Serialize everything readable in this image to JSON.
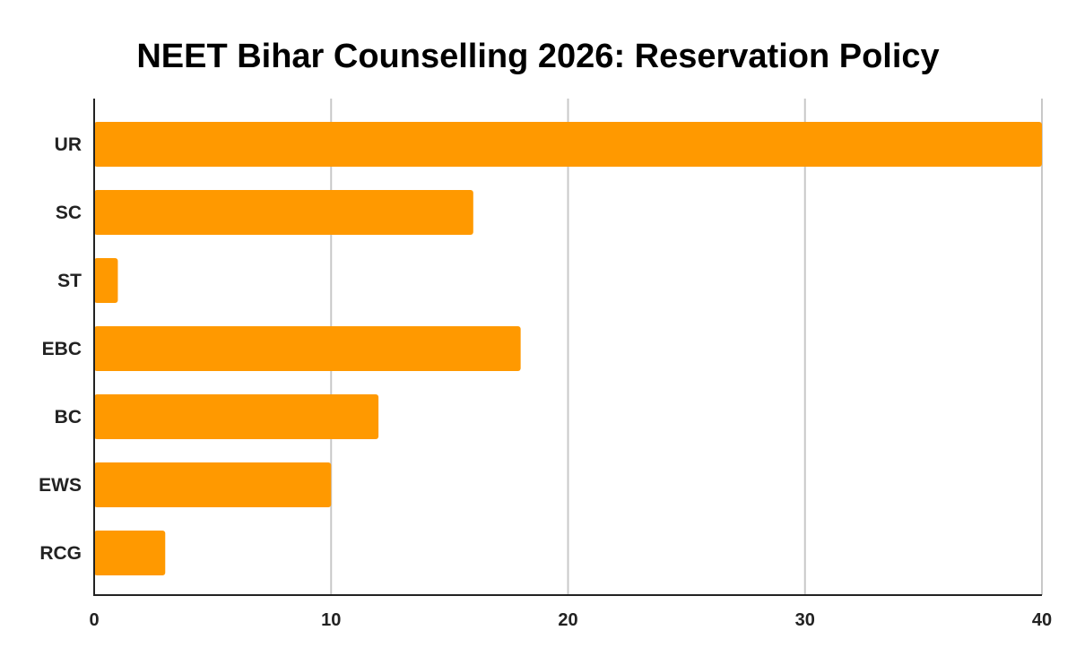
{
  "chart_data": {
    "type": "bar",
    "orientation": "horizontal",
    "title": "NEET Bihar Counselling 2026: Reservation Policy",
    "xlabel": "",
    "ylabel": "",
    "categories": [
      "UR",
      "SC",
      "ST",
      "EBC",
      "BC",
      "EWS",
      "RCG"
    ],
    "values": [
      40,
      16,
      1,
      18,
      12,
      10,
      3
    ],
    "xlim": [
      0,
      40
    ],
    "xticks": [
      0,
      10,
      20,
      30,
      40
    ],
    "grid": true,
    "legend": "none",
    "bar_color": "#ff9900"
  }
}
